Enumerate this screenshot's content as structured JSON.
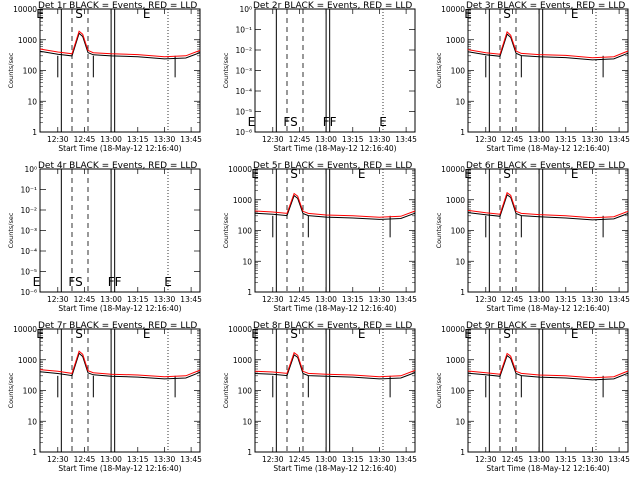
{
  "figure": {
    "xlabel": "Start Time (18-May-12 12:16:40)",
    "ylabel": "Counts/sec",
    "x_tick_labels": [
      "12:30",
      "12:45",
      "13:00",
      "13:15",
      "13:30",
      "13:45"
    ]
  },
  "chart_data": [
    {
      "type": "line",
      "title": "Det 1r BLACK = Events, RED = LLD",
      "ylabel": "Counts/sec",
      "xlabel": "Start Time (18-May-12 12:16:40)",
      "yscale": "log",
      "ylim": [
        1,
        10000
      ],
      "xlim_minutes_after_start": [
        3.33,
        93.33
      ],
      "y_tick_labels": [
        "1",
        "10",
        "100",
        "1000",
        "10000"
      ],
      "markers": [
        {
          "label": "E",
          "x": "12:20"
        },
        {
          "label": "S",
          "x": "12:42"
        },
        {
          "label": "E",
          "x": "13:20"
        }
      ],
      "series": [
        {
          "name": "Events",
          "color": "#000000"
        },
        {
          "name": "LLD",
          "color": "#ff0000"
        }
      ],
      "lld_profile": {
        "x": [
          "12:20",
          "12:30",
          "12:38",
          "12:42",
          "12:44",
          "12:47",
          "12:50",
          "13:00",
          "13:15",
          "13:30",
          "13:42",
          "13:50"
        ],
        "y": [
          500,
          400,
          350,
          1900,
          1500,
          450,
          380,
          350,
          330,
          280,
          300,
          450
        ]
      }
    },
    {
      "type": "line",
      "title": "Det 2r BLACK = Events, RED = LLD",
      "ylabel": "Counts/sec",
      "xlabel": "Start Time (18-May-12 12:16:40)",
      "yscale": "log",
      "ylim": [
        1e-06,
        1e-05
      ],
      "y_tick_labels": [
        "10⁻⁶",
        "10⁻⁵",
        "10⁻⁴",
        "10⁻³",
        "10⁻²",
        "10⁻¹",
        "10⁰"
      ],
      "markers": [
        {
          "label": "E",
          "x": "12:18"
        },
        {
          "label": "FS",
          "x": "12:40"
        },
        {
          "label": "FF",
          "x": "13:02"
        },
        {
          "label": "E",
          "x": "13:32"
        }
      ],
      "series": []
    },
    {
      "type": "line",
      "title": "Det 3r BLACK = Events, RED = LLD",
      "ylabel": "Counts/sec",
      "xlabel": "Start Time (18-May-12 12:16:40)",
      "yscale": "log",
      "ylim": [
        1,
        10000
      ],
      "y_tick_labels": [
        "1",
        "10",
        "100",
        "1000",
        "10000"
      ],
      "markers": [
        {
          "label": "E",
          "x": "12:20"
        },
        {
          "label": "S",
          "x": "12:42"
        },
        {
          "label": "E",
          "x": "13:20"
        }
      ],
      "series": [
        {
          "name": "Events",
          "color": "#000000"
        },
        {
          "name": "LLD",
          "color": "#ff0000"
        }
      ],
      "lld_profile": {
        "x": [
          "12:20",
          "12:30",
          "12:38",
          "12:42",
          "12:44",
          "12:47",
          "12:50",
          "13:00",
          "13:15",
          "13:30",
          "13:42",
          "13:50"
        ],
        "y": [
          480,
          380,
          340,
          1800,
          1400,
          430,
          360,
          330,
          310,
          260,
          280,
          430
        ]
      }
    },
    {
      "type": "line",
      "title": "Det 4r BLACK = Events, RED = LLD",
      "ylabel": "Counts/sec",
      "xlabel": "Start Time (18-May-12 12:16:40)",
      "yscale": "log",
      "ylim": [
        1e-06,
        1e-05
      ],
      "y_tick_labels": [
        "10⁻⁶",
        "10⁻⁵",
        "10⁻⁴",
        "10⁻³",
        "10⁻²",
        "10⁻¹",
        "10⁰"
      ],
      "markers": [
        {
          "label": "E",
          "x": "12:18"
        },
        {
          "label": "FS",
          "x": "12:40"
        },
        {
          "label": "FF",
          "x": "13:02"
        },
        {
          "label": "E",
          "x": "13:32"
        }
      ],
      "series": []
    },
    {
      "type": "line",
      "title": "Det 5r BLACK = Events, RED = LLD",
      "ylabel": "Counts/sec",
      "xlabel": "Start Time (18-May-12 12:16:40)",
      "yscale": "log",
      "ylim": [
        1,
        10000
      ],
      "y_tick_labels": [
        "1",
        "10",
        "100",
        "1000",
        "10000"
      ],
      "markers": [
        {
          "label": "E",
          "x": "12:20"
        },
        {
          "label": "S",
          "x": "12:42"
        },
        {
          "label": "E",
          "x": "13:20"
        }
      ],
      "series": [
        {
          "name": "Events",
          "color": "#000000"
        },
        {
          "name": "LLD",
          "color": "#ff0000"
        }
      ],
      "lld_profile": {
        "x": [
          "12:20",
          "12:30",
          "12:38",
          "12:42",
          "12:44",
          "12:47",
          "12:50",
          "13:00",
          "13:15",
          "13:30",
          "13:42",
          "13:50"
        ],
        "y": [
          430,
          400,
          360,
          1600,
          1300,
          420,
          360,
          320,
          300,
          270,
          290,
          430
        ]
      }
    },
    {
      "type": "line",
      "title": "Det 6r BLACK = Events, RED = LLD",
      "ylabel": "Counts/sec",
      "xlabel": "Start Time (18-May-12 12:16:40)",
      "yscale": "log",
      "ylim": [
        1,
        10000
      ],
      "y_tick_labels": [
        "1",
        "10",
        "100",
        "1000",
        "10000"
      ],
      "markers": [
        {
          "label": "E",
          "x": "12:20"
        },
        {
          "label": "S",
          "x": "12:42"
        },
        {
          "label": "E",
          "x": "13:20"
        }
      ],
      "series": [
        {
          "name": "Events",
          "color": "#000000"
        },
        {
          "name": "LLD",
          "color": "#ff0000"
        }
      ],
      "lld_profile": {
        "x": [
          "12:20",
          "12:30",
          "12:38",
          "12:42",
          "12:44",
          "12:47",
          "12:50",
          "13:00",
          "13:15",
          "13:30",
          "13:42",
          "13:50"
        ],
        "y": [
          450,
          380,
          340,
          1700,
          1400,
          420,
          360,
          330,
          300,
          260,
          280,
          420
        ]
      }
    },
    {
      "type": "line",
      "title": "Det 7r BLACK = Events, RED = LLD",
      "ylabel": "Counts/sec",
      "xlabel": "Start Time (18-May-12 12:16:40)",
      "yscale": "log",
      "ylim": [
        1,
        10000
      ],
      "y_tick_labels": [
        "1",
        "10",
        "100",
        "1000",
        "10000"
      ],
      "markers": [
        {
          "label": "E",
          "x": "12:20"
        },
        {
          "label": "S",
          "x": "12:42"
        },
        {
          "label": "E",
          "x": "13:20"
        }
      ],
      "series": [
        {
          "name": "Events",
          "color": "#000000"
        },
        {
          "name": "LLD",
          "color": "#ff0000"
        }
      ],
      "lld_profile": {
        "x": [
          "12:20",
          "12:30",
          "12:38",
          "12:42",
          "12:44",
          "12:47",
          "12:50",
          "13:00",
          "13:15",
          "13:30",
          "13:42",
          "13:50"
        ],
        "y": [
          480,
          420,
          360,
          1900,
          1500,
          440,
          380,
          340,
          320,
          280,
          300,
          460
        ]
      }
    },
    {
      "type": "line",
      "title": "Det 8r BLACK = Events, RED = LLD",
      "ylabel": "Counts/sec",
      "xlabel": "Start Time (18-May-12 12:16:40)",
      "yscale": "log",
      "ylim": [
        1,
        10000
      ],
      "y_tick_labels": [
        "1",
        "10",
        "100",
        "1000",
        "10000"
      ],
      "markers": [
        {
          "label": "E",
          "x": "12:20"
        },
        {
          "label": "S",
          "x": "12:42"
        },
        {
          "label": "E",
          "x": "13:20"
        }
      ],
      "series": [
        {
          "name": "Events",
          "color": "#000000"
        },
        {
          "name": "LLD",
          "color": "#ff0000"
        }
      ],
      "lld_profile": {
        "x": [
          "12:20",
          "12:30",
          "12:38",
          "12:42",
          "12:44",
          "12:47",
          "12:50",
          "13:00",
          "13:15",
          "13:30",
          "13:42",
          "13:50"
        ],
        "y": [
          420,
          400,
          360,
          1700,
          1400,
          420,
          360,
          340,
          320,
          280,
          300,
          450
        ]
      }
    },
    {
      "type": "line",
      "title": "Det 9r BLACK = Events, RED = LLD",
      "ylabel": "Counts/sec",
      "xlabel": "Start Time (18-May-12 12:16:40)",
      "yscale": "log",
      "ylim": [
        1,
        10000
      ],
      "y_tick_labels": [
        "1",
        "10",
        "100",
        "1000",
        "10000"
      ],
      "markers": [
        {
          "label": "E",
          "x": "12:20"
        },
        {
          "label": "S",
          "x": "12:42"
        },
        {
          "label": "E",
          "x": "13:20"
        }
      ],
      "series": [
        {
          "name": "Events",
          "color": "#000000"
        },
        {
          "name": "LLD",
          "color": "#ff0000"
        }
      ],
      "lld_profile": {
        "x": [
          "12:20",
          "12:30",
          "12:38",
          "12:42",
          "12:44",
          "12:47",
          "12:50",
          "13:00",
          "13:15",
          "13:30",
          "13:42",
          "13:50"
        ],
        "y": [
          430,
          380,
          340,
          1600,
          1300,
          420,
          360,
          320,
          300,
          260,
          280,
          430
        ]
      }
    }
  ]
}
